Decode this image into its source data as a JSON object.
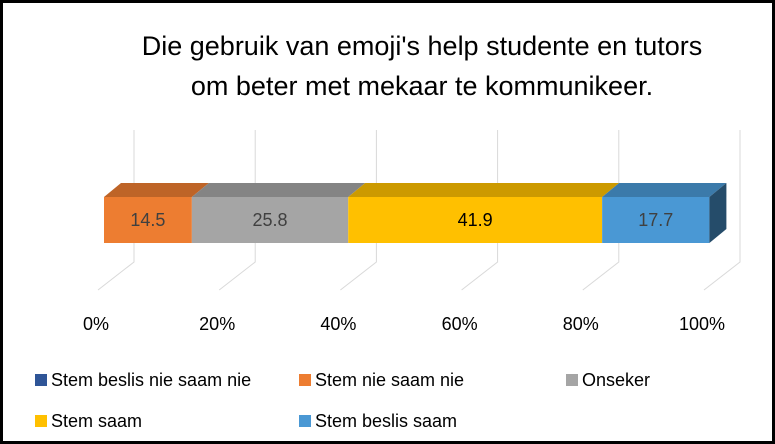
{
  "chart_data": {
    "type": "stacked-bar-3d",
    "title": "Die gebruik van emoji's help studente en tutors om beter met mekaar te kommunikeer.",
    "orientation": "horizontal",
    "series": [
      {
        "name": "Stem beslis nie saam nie",
        "color": "#2f5597",
        "values": [
          0
        ]
      },
      {
        "name": "Stem nie saam nie",
        "color": "#ed7d31",
        "values": [
          14.5
        ]
      },
      {
        "name": "Onseker",
        "color": "#a5a5a5",
        "values": [
          25.8
        ]
      },
      {
        "name": "Stem saam",
        "color": "#ffc000",
        "values": [
          41.9
        ]
      },
      {
        "name": "Stem beslis saam",
        "color": "#4a98d4",
        "values": [
          17.7
        ]
      }
    ],
    "xlim": [
      0,
      100
    ],
    "xticks": [
      {
        "value": 0,
        "label": "0%"
      },
      {
        "value": 20,
        "label": "20%"
      },
      {
        "value": 40,
        "label": "40%"
      },
      {
        "value": 60,
        "label": "60%"
      },
      {
        "value": 80,
        "label": "80%"
      },
      {
        "value": 100,
        "label": "100%"
      }
    ],
    "grid": true,
    "legend": "bottom"
  }
}
